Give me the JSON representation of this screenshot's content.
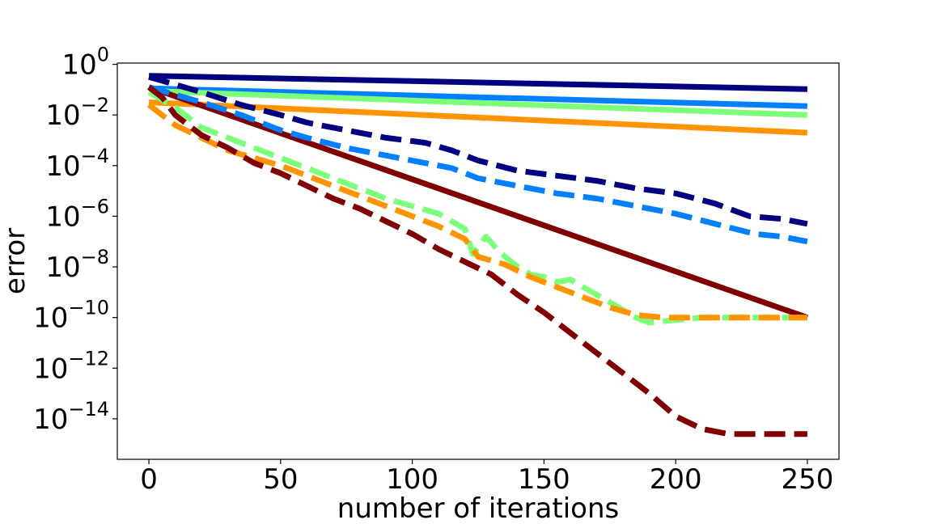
{
  "chart_data": {
    "type": "line",
    "title": "",
    "xlabel": "number of iterations",
    "ylabel": "error",
    "yscale": "log",
    "xlim": [
      -12,
      262
    ],
    "ylim_exp": [
      -15.6,
      0.05
    ],
    "x_ticks": [
      0,
      50,
      100,
      150,
      200,
      250
    ],
    "y_tick_exps": [
      0,
      -2,
      -4,
      -6,
      -8,
      -10,
      -12,
      -14
    ],
    "y_tick_base": "10",
    "legend": "none",
    "grid": false,
    "series": [
      {
        "name": "solid-navy",
        "color": "#000080",
        "style": "solid",
        "points": [
          [
            0,
            -0.45
          ],
          [
            250,
            -0.98
          ]
        ]
      },
      {
        "name": "solid-blue",
        "color": "#0080ff",
        "style": "solid",
        "points": [
          [
            0,
            -0.95
          ],
          [
            250,
            -1.65
          ]
        ]
      },
      {
        "name": "solid-green",
        "color": "#7dff7a",
        "style": "solid",
        "points": [
          [
            0,
            -1.05
          ],
          [
            250,
            -2.0
          ]
        ]
      },
      {
        "name": "solid-orange",
        "color": "#ff9400",
        "style": "solid",
        "points": [
          [
            0,
            -1.5
          ],
          [
            250,
            -2.7
          ]
        ]
      },
      {
        "name": "solid-darkred",
        "color": "#800000",
        "style": "solid",
        "points": [
          [
            0,
            -0.9
          ],
          [
            250,
            -10.0
          ]
        ]
      },
      {
        "name": "dashed-navy",
        "color": "#000080",
        "style": "dashed",
        "points": [
          [
            0,
            -0.5
          ],
          [
            10,
            -0.8
          ],
          [
            20,
            -1.1
          ],
          [
            35,
            -1.6
          ],
          [
            50,
            -2.0
          ],
          [
            60,
            -2.3
          ],
          [
            75,
            -2.6
          ],
          [
            90,
            -2.9
          ],
          [
            105,
            -3.1
          ],
          [
            115,
            -3.4
          ],
          [
            125,
            -3.8
          ],
          [
            140,
            -4.2
          ],
          [
            155,
            -4.4
          ],
          [
            170,
            -4.6
          ],
          [
            185,
            -4.9
          ],
          [
            200,
            -5.1
          ],
          [
            215,
            -5.5
          ],
          [
            228,
            -6.0
          ],
          [
            240,
            -6.1
          ],
          [
            250,
            -6.3
          ]
        ]
      },
      {
        "name": "dashed-blue",
        "color": "#0080ff",
        "style": "dashed",
        "points": [
          [
            0,
            -0.9
          ],
          [
            10,
            -1.2
          ],
          [
            20,
            -1.5
          ],
          [
            35,
            -2.0
          ],
          [
            50,
            -2.6
          ],
          [
            60,
            -2.9
          ],
          [
            75,
            -3.3
          ],
          [
            90,
            -3.6
          ],
          [
            105,
            -3.9
          ],
          [
            115,
            -4.1
          ],
          [
            125,
            -4.5
          ],
          [
            140,
            -4.8
          ],
          [
            155,
            -5.1
          ],
          [
            170,
            -5.3
          ],
          [
            185,
            -5.6
          ],
          [
            200,
            -5.9
          ],
          [
            215,
            -6.3
          ],
          [
            230,
            -6.7
          ],
          [
            240,
            -6.8
          ],
          [
            250,
            -7.0
          ]
        ]
      },
      {
        "name": "dashed-green",
        "color": "#7dff7a",
        "style": "dashed",
        "points": [
          [
            0,
            -1.1
          ],
          [
            10,
            -1.7
          ],
          [
            20,
            -2.5
          ],
          [
            30,
            -2.9
          ],
          [
            40,
            -3.3
          ],
          [
            50,
            -3.7
          ],
          [
            60,
            -4.1
          ],
          [
            70,
            -4.5
          ],
          [
            80,
            -4.9
          ],
          [
            90,
            -5.3
          ],
          [
            100,
            -5.6
          ],
          [
            110,
            -5.9
          ],
          [
            115,
            -6.2
          ],
          [
            120,
            -6.5
          ],
          [
            123,
            -7.5
          ],
          [
            128,
            -6.8
          ],
          [
            133,
            -7.4
          ],
          [
            140,
            -8.0
          ],
          [
            145,
            -8.3
          ],
          [
            150,
            -8.4
          ],
          [
            155,
            -8.6
          ],
          [
            160,
            -8.5
          ],
          [
            165,
            -8.8
          ],
          [
            170,
            -9.1
          ],
          [
            175,
            -9.4
          ],
          [
            180,
            -9.7
          ],
          [
            185,
            -10.0
          ],
          [
            190,
            -10.2
          ],
          [
            200,
            -10.1
          ],
          [
            210,
            -10.0
          ],
          [
            250,
            -10.0
          ]
        ]
      },
      {
        "name": "dashed-orange",
        "color": "#ff9400",
        "style": "dashed",
        "points": [
          [
            0,
            -1.6
          ],
          [
            10,
            -2.4
          ],
          [
            20,
            -2.9
          ],
          [
            30,
            -3.4
          ],
          [
            40,
            -3.7
          ],
          [
            50,
            -4.0
          ],
          [
            60,
            -4.4
          ],
          [
            70,
            -4.8
          ],
          [
            80,
            -5.2
          ],
          [
            90,
            -5.6
          ],
          [
            100,
            -6.0
          ],
          [
            110,
            -6.4
          ],
          [
            120,
            -6.9
          ],
          [
            125,
            -7.6
          ],
          [
            135,
            -7.9
          ],
          [
            145,
            -8.4
          ],
          [
            155,
            -8.8
          ],
          [
            165,
            -9.2
          ],
          [
            175,
            -9.6
          ],
          [
            185,
            -9.9
          ],
          [
            195,
            -10.0
          ],
          [
            250,
            -10.0
          ]
        ]
      },
      {
        "name": "dashed-darkred",
        "color": "#800000",
        "style": "dashed",
        "points": [
          [
            0,
            -0.9
          ],
          [
            5,
            -1.3
          ],
          [
            10,
            -2.0
          ],
          [
            20,
            -2.8
          ],
          [
            30,
            -3.3
          ],
          [
            40,
            -3.9
          ],
          [
            50,
            -4.3
          ],
          [
            60,
            -4.8
          ],
          [
            70,
            -5.3
          ],
          [
            80,
            -5.7
          ],
          [
            90,
            -6.2
          ],
          [
            100,
            -6.7
          ],
          [
            110,
            -7.3
          ],
          [
            120,
            -7.8
          ],
          [
            130,
            -8.3
          ],
          [
            140,
            -9.1
          ],
          [
            150,
            -9.8
          ],
          [
            160,
            -10.6
          ],
          [
            170,
            -11.4
          ],
          [
            180,
            -12.2
          ],
          [
            190,
            -13.0
          ],
          [
            200,
            -13.9
          ],
          [
            210,
            -14.4
          ],
          [
            220,
            -14.6
          ],
          [
            250,
            -14.6
          ]
        ]
      }
    ]
  }
}
